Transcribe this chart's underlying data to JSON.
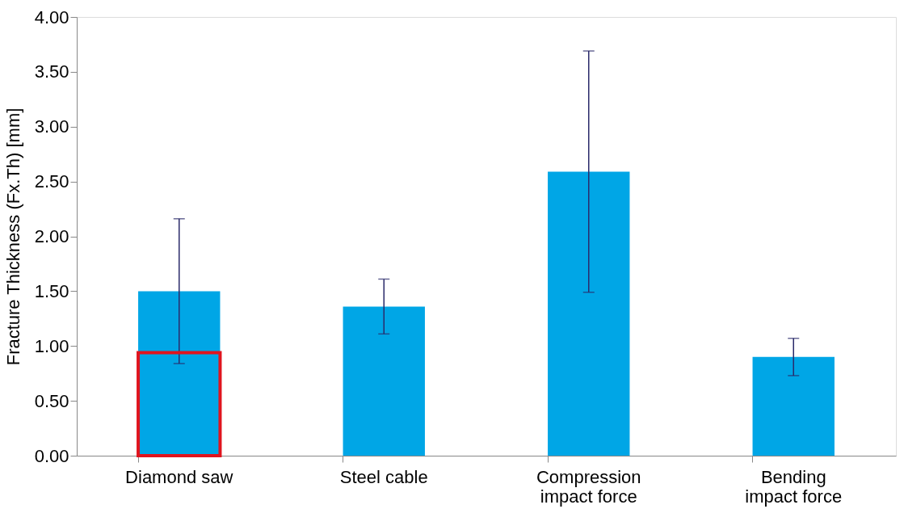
{
  "chart_data": {
    "type": "bar",
    "ylabel": "Fracture Thickness (Fx.Th) [mm]",
    "categories": [
      "Diamond saw",
      "Steel cable",
      "Compression impact force",
      "Bending impact force"
    ],
    "series": [
      {
        "color": "#00a6e6",
        "values": [
          1.5,
          1.36,
          2.59,
          0.9
        ],
        "errors": [
          0.66,
          0.25,
          1.1,
          0.17
        ]
      },
      {
        "type": "bar",
        "color": "#e0141e",
        "values": [
          0.94,
          null,
          null,
          null
        ]
      }
    ],
    "ylim": [
      0,
      4
    ],
    "yticks": [
      {
        "value": 0,
        "label": "0.00"
      },
      {
        "value": 0.5,
        "label": "0.50"
      },
      {
        "value": 1,
        "label": "1.00"
      },
      {
        "value": 1.5,
        "label": "1.50"
      },
      {
        "value": 2,
        "label": "2.00"
      },
      {
        "value": 2.5,
        "label": "2.50"
      },
      {
        "value": 3,
        "label": "3.00"
      },
      {
        "value": 3.5,
        "label": "3.50"
      },
      {
        "value": 4,
        "label": "4.00"
      }
    ],
    "grid": false
  }
}
